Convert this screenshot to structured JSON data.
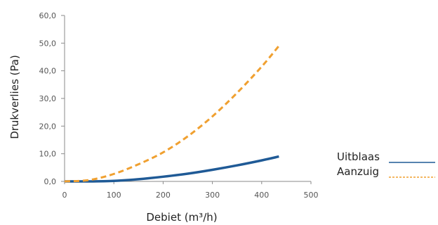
{
  "chart_data": {
    "type": "line",
    "xlabel": "Debiet (m³/h)",
    "ylabel": "Drukverlies (Pa)",
    "xlim": [
      0,
      500
    ],
    "ylim": [
      0,
      60
    ],
    "x_ticks": [
      "0",
      "100",
      "200",
      "300",
      "400",
      "500"
    ],
    "y_ticks": [
      "0,0",
      "10,0",
      "20,0",
      "30,0",
      "40,0",
      "50,0",
      "60,0"
    ],
    "grid": false,
    "legend_position": "right",
    "series": [
      {
        "name": "Uitblaas",
        "color": "#1f5a96",
        "style": "solid",
        "x": [
          0,
          50,
          100,
          150,
          200,
          250,
          300,
          350,
          400,
          435
        ],
        "y": [
          0.0,
          0.0,
          0.2,
          0.8,
          1.7,
          2.8,
          4.2,
          5.8,
          7.6,
          9.0
        ]
      },
      {
        "name": "Aanzuig",
        "color": "#f0a030",
        "style": "dashed",
        "x": [
          0,
          50,
          100,
          150,
          200,
          250,
          300,
          350,
          400,
          435
        ],
        "y": [
          0.0,
          0.5,
          2.7,
          6.2,
          10.5,
          16.3,
          23.5,
          32.0,
          41.5,
          49.0
        ]
      }
    ]
  }
}
